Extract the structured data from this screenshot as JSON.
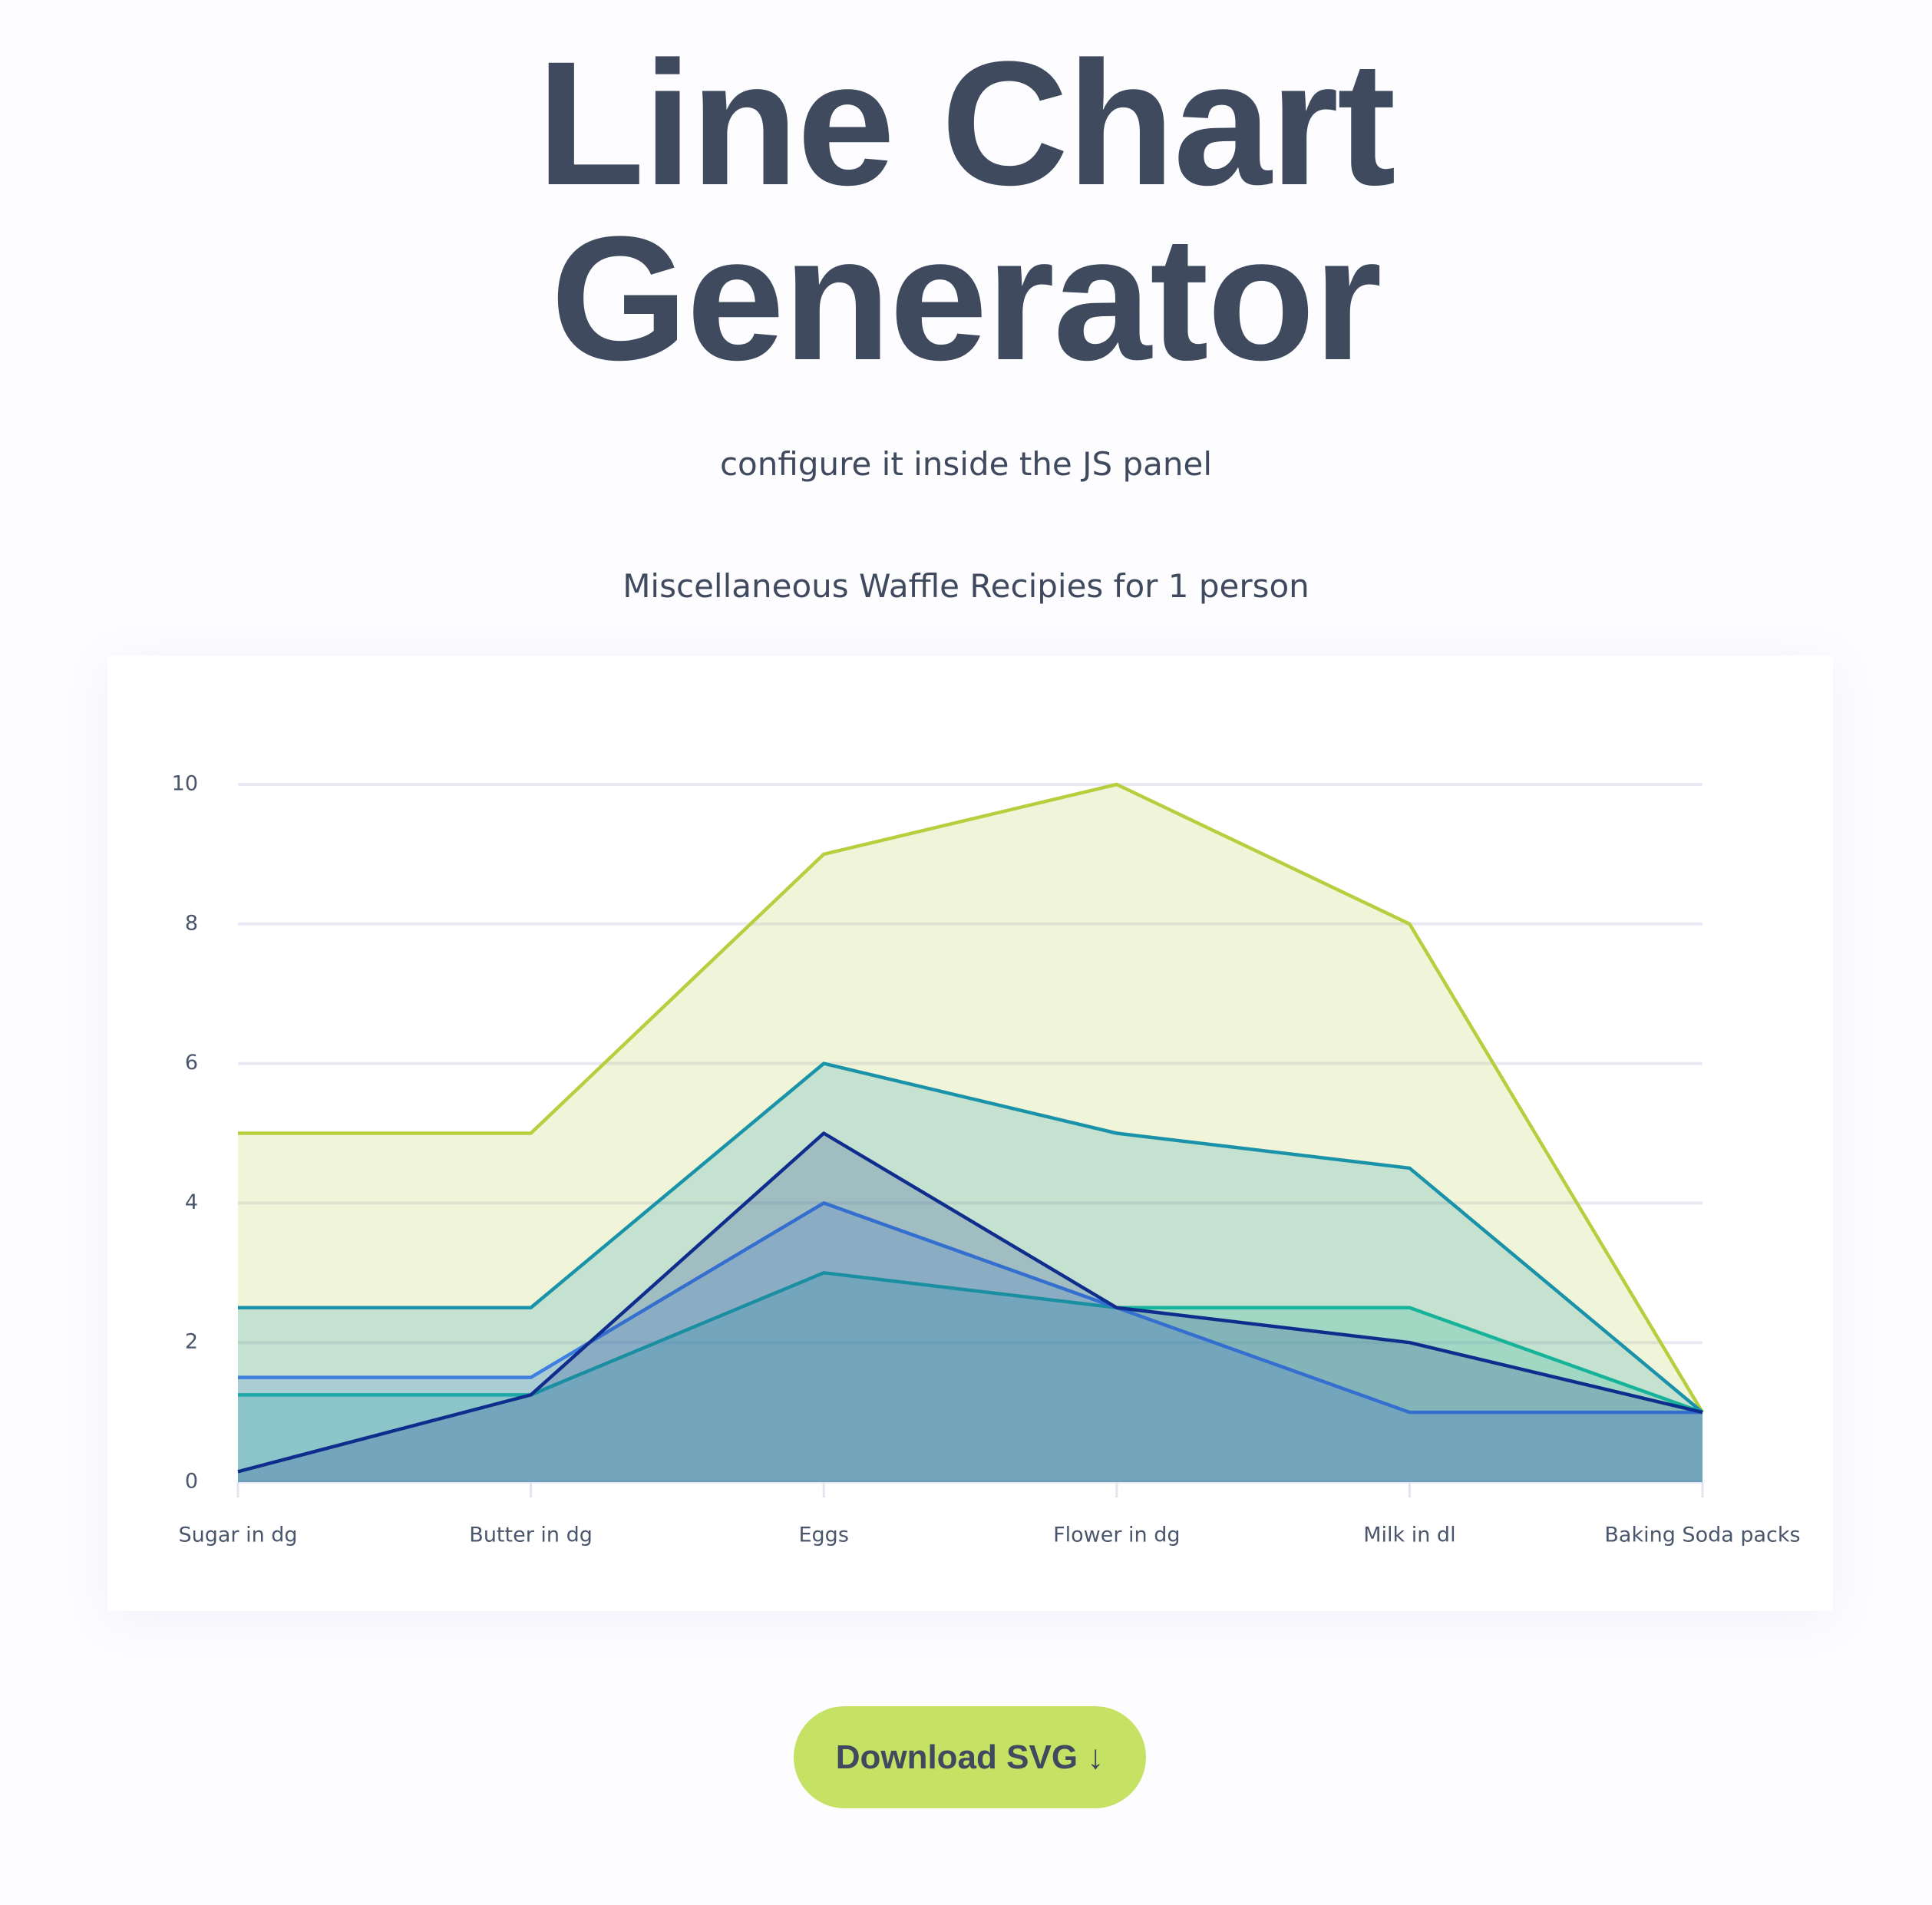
{
  "header": {
    "title": "Line Chart Generator",
    "subtitle": "configure it inside the JS panel"
  },
  "chart_data": {
    "type": "area",
    "title": "Miscellaneous Waffle Recipies for 1 person",
    "categories": [
      "Sugar in dg",
      "Butter in dg",
      "Eggs",
      "Flower in dg",
      "Milk in dl",
      "Baking Soda packs"
    ],
    "series": [
      {
        "color": "#b6cf3f",
        "values": [
          5,
          5,
          9,
          10,
          8,
          1
        ]
      },
      {
        "color": "#1a93aa",
        "values": [
          2.5,
          2.5,
          6,
          5,
          4.5,
          1
        ]
      },
      {
        "color": "#16b39a",
        "values": [
          1.25,
          1.25,
          3,
          2.5,
          2.5,
          1
        ]
      },
      {
        "color": "#3e7fe0",
        "values": [
          1.5,
          1.5,
          4,
          2.5,
          1,
          1
        ]
      },
      {
        "color": "#0f2d8c",
        "values": [
          0.15,
          1.25,
          5,
          2.5,
          2,
          1
        ]
      }
    ],
    "ylim": [
      0,
      10
    ],
    "yticks": [
      0,
      2,
      4,
      6,
      8,
      10
    ],
    "grid": true
  },
  "button": {
    "label": "Download SVG ↓"
  }
}
